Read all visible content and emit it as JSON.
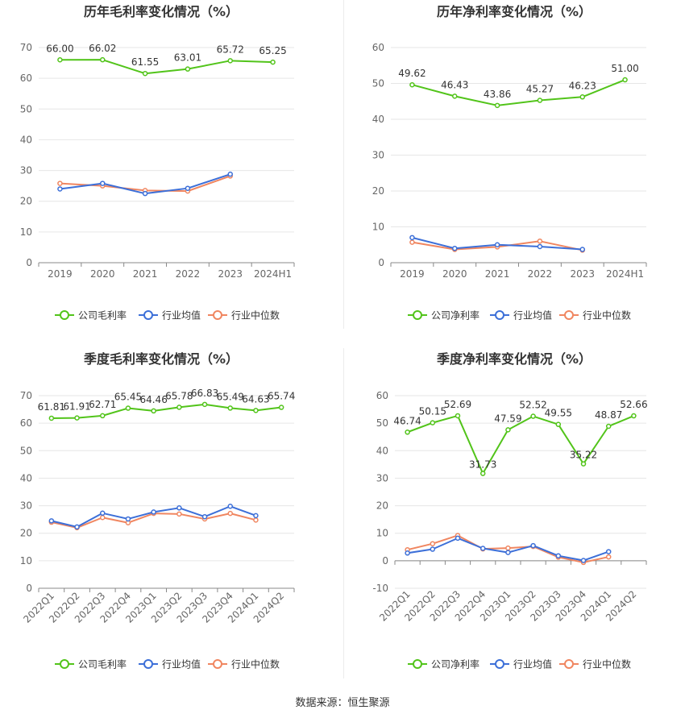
{
  "colors": {
    "company": "#52c41a",
    "industry_avg": "#3c6fd8",
    "industry_median": "#f08660",
    "axis": "#666666",
    "grid": "#e6e6e6",
    "title": "#333333"
  },
  "source": "数据来源：恒生聚源",
  "chart_data": [
    {
      "type": "line",
      "title": "历年毛利率变化情况（%）",
      "categories": [
        "2019",
        "2020",
        "2021",
        "2022",
        "2023",
        "2024H1"
      ],
      "ylim": [
        0,
        70
      ],
      "yticks": [
        0,
        10,
        20,
        30,
        40,
        50,
        60,
        70
      ],
      "grid": true,
      "legend": "bottom",
      "series": [
        {
          "name": "公司毛利率",
          "key": "company",
          "values": [
            66.0,
            66.02,
            61.55,
            63.01,
            65.72,
            65.25
          ],
          "labels": [
            "66.00",
            "66.02",
            "61.55",
            "63.01",
            "65.72",
            "65.25"
          ]
        },
        {
          "name": "行业均值",
          "key": "industry_avg",
          "values": [
            24.0,
            25.8,
            22.5,
            24.2,
            28.8,
            null
          ]
        },
        {
          "name": "行业中位数",
          "key": "industry_median",
          "values": [
            25.8,
            25.0,
            23.5,
            23.3,
            28.2,
            null
          ]
        }
      ]
    },
    {
      "type": "line",
      "title": "历年净利率变化情况（%）",
      "categories": [
        "2019",
        "2020",
        "2021",
        "2022",
        "2023",
        "2024H1"
      ],
      "ylim": [
        0,
        60
      ],
      "yticks": [
        0,
        10,
        20,
        30,
        40,
        50,
        60
      ],
      "grid": true,
      "legend": "bottom",
      "series": [
        {
          "name": "公司净利率",
          "key": "company",
          "values": [
            49.62,
            46.43,
            43.86,
            45.27,
            46.23,
            51.0
          ],
          "labels": [
            "49.62",
            "46.43",
            "43.86",
            "45.27",
            "46.23",
            "51.00"
          ]
        },
        {
          "name": "行业均值",
          "key": "industry_avg",
          "values": [
            7.0,
            4.0,
            5.0,
            4.5,
            3.7,
            null
          ]
        },
        {
          "name": "行业中位数",
          "key": "industry_median",
          "values": [
            5.7,
            3.7,
            4.4,
            6.0,
            3.5,
            null
          ]
        }
      ]
    },
    {
      "type": "line",
      "title": "季度毛利率变化情况（%）",
      "categories": [
        "2022Q1",
        "2022Q2",
        "2022Q3",
        "2022Q4",
        "2023Q1",
        "2023Q2",
        "2023Q3",
        "2023Q4",
        "2024Q1",
        "2024Q2"
      ],
      "ylim": [
        0,
        70
      ],
      "yticks": [
        0,
        10,
        20,
        30,
        40,
        50,
        60,
        70
      ],
      "grid": true,
      "legend": "bottom",
      "series": [
        {
          "name": "公司毛利率",
          "key": "company",
          "values": [
            61.81,
            61.91,
            62.71,
            65.45,
            64.46,
            65.78,
            66.83,
            65.49,
            64.63,
            65.74
          ],
          "labels": [
            "61.81",
            "61.91",
            "62.71",
            "65.45",
            "64.46",
            "65.78",
            "66.83",
            "65.49",
            "64.63",
            "65.74"
          ]
        },
        {
          "name": "行业均值",
          "key": "industry_avg",
          "values": [
            24.5,
            22.3,
            27.3,
            25.2,
            27.7,
            29.2,
            26.0,
            29.8,
            26.4,
            null
          ]
        },
        {
          "name": "行业中位数",
          "key": "industry_median",
          "values": [
            24.0,
            22.0,
            25.7,
            23.8,
            27.2,
            27.0,
            25.2,
            27.2,
            24.8,
            null
          ]
        }
      ]
    },
    {
      "type": "line",
      "title": "季度净利率变化情况（%）",
      "categories": [
        "2022Q1",
        "2022Q2",
        "2022Q3",
        "2022Q4",
        "2023Q1",
        "2023Q2",
        "2023Q3",
        "2023Q4",
        "2024Q1",
        "2024Q2"
      ],
      "ylim": [
        -10,
        60
      ],
      "yticks": [
        -10,
        0,
        10,
        20,
        30,
        40,
        50,
        60
      ],
      "grid": true,
      "legend": "bottom",
      "series": [
        {
          "name": "公司净利率",
          "key": "company",
          "values": [
            46.74,
            50.15,
            52.69,
            31.73,
            47.59,
            52.52,
            49.55,
            35.22,
            48.87,
            52.66
          ],
          "labels": [
            "46.74",
            "50.15",
            "52.69",
            "31.73",
            "47.59",
            "52.52",
            "49.55",
            "35.22",
            "48.87",
            "52.66"
          ]
        },
        {
          "name": "行业均值",
          "key": "industry_avg",
          "values": [
            2.8,
            4.2,
            8.2,
            4.5,
            3.0,
            5.5,
            1.8,
            0.1,
            3.3,
            null
          ]
        },
        {
          "name": "行业中位数",
          "key": "industry_median",
          "values": [
            4.0,
            6.2,
            9.2,
            4.3,
            4.6,
            5.2,
            1.3,
            -0.6,
            1.4,
            null
          ]
        }
      ]
    }
  ]
}
